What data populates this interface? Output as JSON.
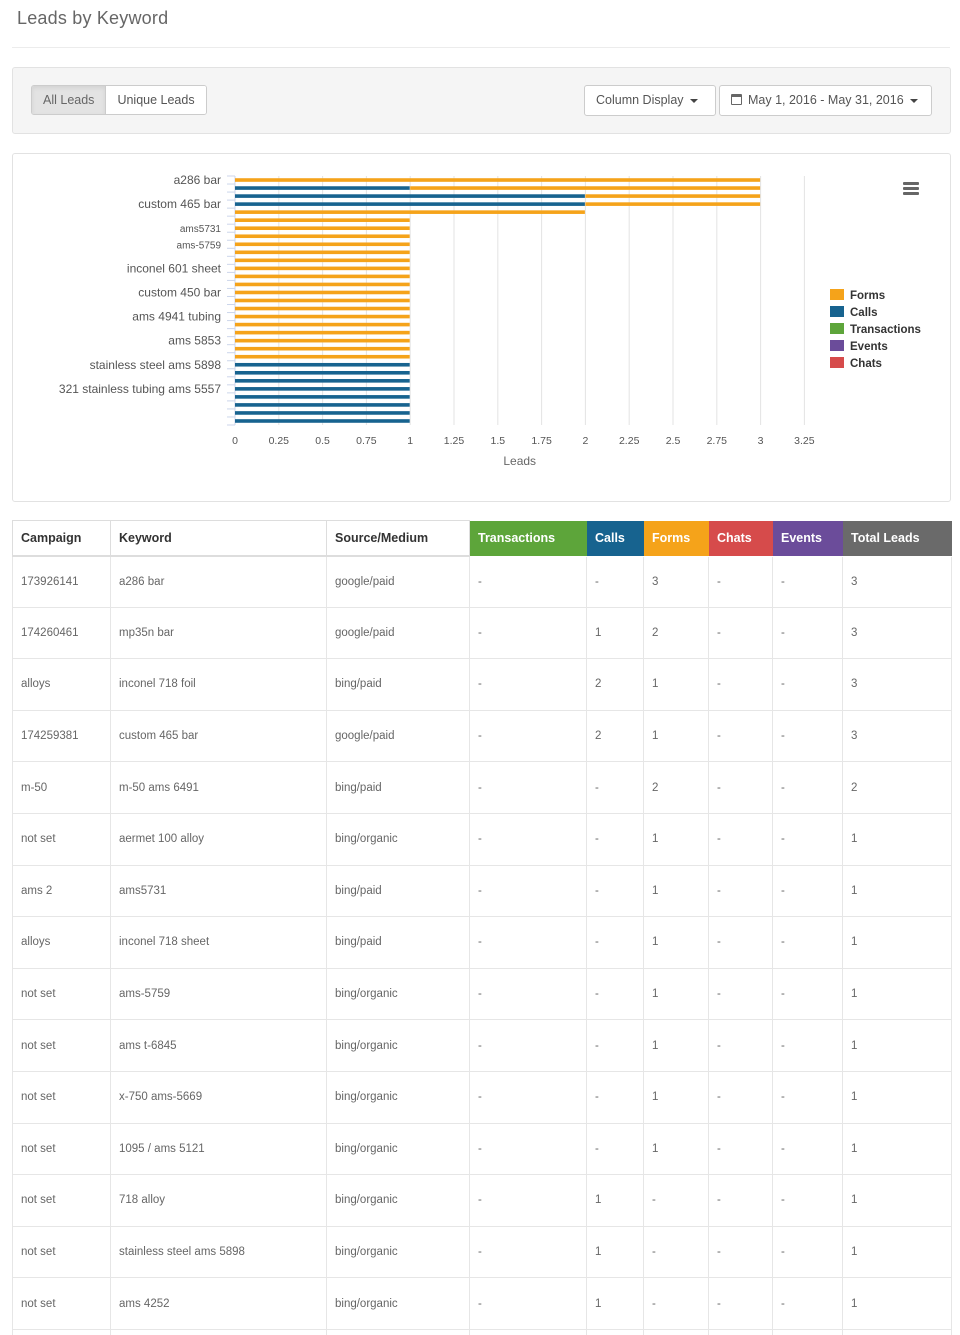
{
  "page": {
    "title": "Leads by Keyword"
  },
  "filters": {
    "segments": [
      {
        "label": "All Leads",
        "active": true
      },
      {
        "label": "Unique Leads",
        "active": false
      }
    ],
    "column_display_label": "Column Display",
    "date_range_label": "May 1, 2016 - May 31, 2016",
    "icons": {
      "calendar": "calendar-icon",
      "caret": "caret-down-icon"
    }
  },
  "colors": {
    "Forms": "#f5a31a",
    "Calls": "#17638f",
    "Transactions": "#5da53a",
    "Events": "#6b4c9a",
    "Chats": "#d64b4b",
    "Total": "#6a6a6a"
  },
  "chart_data": {
    "type": "bar",
    "orientation": "horizontal",
    "stacked": true,
    "xlabel": "Leads",
    "ylabel": "",
    "xlim": [
      0,
      3.25
    ],
    "xticks": [
      "0",
      "0.25",
      "0.5",
      "0.75",
      "1",
      "1.25",
      "1.5",
      "1.75",
      "2",
      "2.25",
      "2.5",
      "2.75",
      "3",
      "3.25"
    ],
    "grid": true,
    "legend_position": "right",
    "legend": [
      "Forms",
      "Calls",
      "Transactions",
      "Events",
      "Chats"
    ],
    "visible_category_labels": [
      {
        "label": "a286 bar",
        "index": 0
      },
      {
        "label": "custom 465 bar",
        "index": 3
      },
      {
        "label": "ams5731",
        "index": 6
      },
      {
        "label": "ams-5759",
        "index": 8
      },
      {
        "label": "inconel 601 sheet",
        "index": 11
      },
      {
        "label": "custom 450 bar",
        "index": 14
      },
      {
        "label": "ams 4941 tubing",
        "index": 17
      },
      {
        "label": "ams 5853",
        "index": 20
      },
      {
        "label": "stainless steel ams 5898",
        "index": 23
      },
      {
        "label": "321 stainless tubing ams 5557",
        "index": 26
      }
    ],
    "series": [
      {
        "name": "Calls",
        "values": [
          0,
          1,
          2,
          2,
          0,
          0,
          0,
          0,
          0,
          0,
          0,
          0,
          0,
          0,
          0,
          0,
          0,
          0,
          0,
          0,
          0,
          0,
          0,
          1,
          1,
          1,
          1,
          1,
          1,
          1,
          1
        ]
      },
      {
        "name": "Forms",
        "values": [
          3,
          2,
          1,
          1,
          2,
          1,
          1,
          1,
          1,
          1,
          1,
          1,
          1,
          1,
          1,
          1,
          1,
          1,
          1,
          1,
          1,
          1,
          1,
          0,
          0,
          0,
          0,
          0,
          0,
          0,
          0
        ]
      },
      {
        "name": "Transactions",
        "values": [
          0,
          0,
          0,
          0,
          0,
          0,
          0,
          0,
          0,
          0,
          0,
          0,
          0,
          0,
          0,
          0,
          0,
          0,
          0,
          0,
          0,
          0,
          0,
          0,
          0,
          0,
          0,
          0,
          0,
          0,
          0
        ]
      },
      {
        "name": "Events",
        "values": [
          0,
          0,
          0,
          0,
          0,
          0,
          0,
          0,
          0,
          0,
          0,
          0,
          0,
          0,
          0,
          0,
          0,
          0,
          0,
          0,
          0,
          0,
          0,
          0,
          0,
          0,
          0,
          0,
          0,
          0,
          0
        ]
      },
      {
        "name": "Chats",
        "values": [
          0,
          0,
          0,
          0,
          0,
          0,
          0,
          0,
          0,
          0,
          0,
          0,
          0,
          0,
          0,
          0,
          0,
          0,
          0,
          0,
          0,
          0,
          0,
          0,
          0,
          0,
          0,
          0,
          0,
          0,
          0
        ]
      }
    ]
  },
  "table": {
    "headers": [
      {
        "key": "campaign",
        "label": "Campaign"
      },
      {
        "key": "keyword",
        "label": "Keyword"
      },
      {
        "key": "source",
        "label": "Source/Medium"
      },
      {
        "key": "transactions",
        "label": "Transactions"
      },
      {
        "key": "calls",
        "label": "Calls"
      },
      {
        "key": "forms",
        "label": "Forms"
      },
      {
        "key": "chats",
        "label": "Chats"
      },
      {
        "key": "events",
        "label": "Events"
      },
      {
        "key": "total",
        "label": "Total Leads"
      }
    ],
    "rows": [
      [
        "173926141",
        "a286 bar",
        "google/paid",
        "-",
        "-",
        "3",
        "-",
        "-",
        "3"
      ],
      [
        "174260461",
        "mp35n bar",
        "google/paid",
        "-",
        "1",
        "2",
        "-",
        "-",
        "3"
      ],
      [
        "alloys",
        "inconel 718 foil",
        "bing/paid",
        "-",
        "2",
        "1",
        "-",
        "-",
        "3"
      ],
      [
        "174259381",
        "custom 465 bar",
        "google/paid",
        "-",
        "2",
        "1",
        "-",
        "-",
        "3"
      ],
      [
        "m-50",
        "m-50 ams 6491",
        "bing/paid",
        "-",
        "-",
        "2",
        "-",
        "-",
        "2"
      ],
      [
        "not set",
        "aermet 100 alloy",
        "bing/organic",
        "-",
        "-",
        "1",
        "-",
        "-",
        "1"
      ],
      [
        "ams 2",
        "ams5731",
        "bing/paid",
        "-",
        "-",
        "1",
        "-",
        "-",
        "1"
      ],
      [
        "alloys",
        "inconel 718 sheet",
        "bing/paid",
        "-",
        "-",
        "1",
        "-",
        "-",
        "1"
      ],
      [
        "not set",
        "ams-5759",
        "bing/organic",
        "-",
        "-",
        "1",
        "-",
        "-",
        "1"
      ],
      [
        "not set",
        "ams t-6845",
        "bing/organic",
        "-",
        "-",
        "1",
        "-",
        "-",
        "1"
      ],
      [
        "not set",
        "x-750 ams-5669",
        "bing/organic",
        "-",
        "-",
        "1",
        "-",
        "-",
        "1"
      ],
      [
        "not set",
        "1095 / ams 5121",
        "bing/organic",
        "-",
        "-",
        "1",
        "-",
        "-",
        "1"
      ],
      [
        "not set",
        "718 alloy",
        "bing/organic",
        "-",
        "1",
        "-",
        "-",
        "-",
        "1"
      ],
      [
        "not set",
        "stainless steel ams 5898",
        "bing/organic",
        "-",
        "1",
        "-",
        "-",
        "-",
        "1"
      ],
      [
        "not set",
        "ams 4252",
        "bing/organic",
        "-",
        "1",
        "-",
        "-",
        "-",
        "1"
      ],
      [
        "",
        "",
        "",
        "",
        "",
        "",
        "",
        "",
        ""
      ]
    ]
  }
}
